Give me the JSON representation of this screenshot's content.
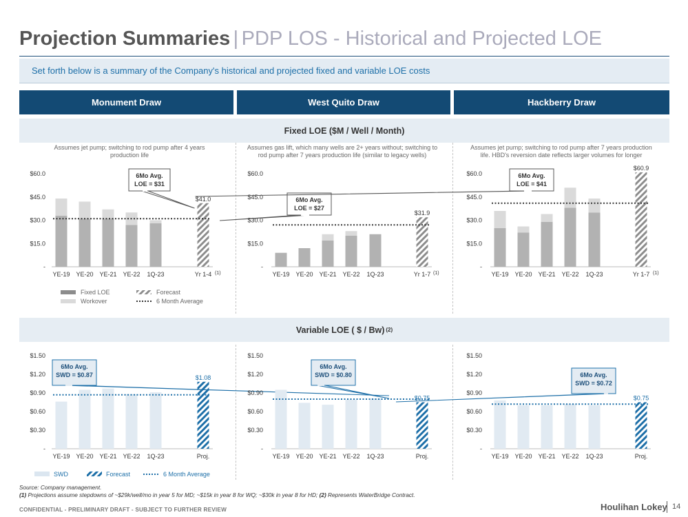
{
  "header": {
    "title_bold": "Projection Summaries",
    "title_sep": "|",
    "title_rest": "PDP LOS - Historical and Projected LOE",
    "subtitle": "Set forth below is a summary of the Company's historical and projected fixed and variable LOE costs"
  },
  "columns": [
    "Monument Draw",
    "West Quito Draw",
    "Hackberry Draw"
  ],
  "sections": {
    "fixed": {
      "label": "Fixed LOE ($M / Well / Month)"
    },
    "variable": {
      "label": "Variable LOE ( $ / Bw)",
      "sup": "(2)"
    }
  },
  "legends": {
    "fixed": {
      "fixed_loe": "Fixed LOE",
      "workover": "Workover",
      "forecast": "Forecast",
      "avg": "6 Month Average"
    },
    "variable": {
      "swd": "SWD",
      "forecast": "Forecast",
      "avg": "6 Month Average"
    }
  },
  "colors": {
    "navy": "#134a74",
    "fixed_gray": "#b2b2b2",
    "workover_gray": "#dadada",
    "swd_light": "#e1eaf2",
    "forecast_blue": "#1d6fa8",
    "text_gray": "#666666"
  },
  "chart_data": [
    {
      "type": "bar",
      "id": "fixed-monument",
      "note": "Assumes jet pump; switching to rod pump after 4 years production life",
      "categories": [
        "YE-19",
        "YE-20",
        "YE-21",
        "YE-22",
        "1Q-23",
        "Yr 1-4"
      ],
      "footnote_mark": "(1)",
      "series": [
        {
          "name": "Fixed LOE",
          "values": [
            33,
            31,
            31,
            27,
            28,
            null
          ]
        },
        {
          "name": "Workover",
          "values": [
            11,
            11,
            6,
            8,
            2,
            null
          ]
        },
        {
          "name": "Forecast",
          "values": [
            null,
            null,
            null,
            null,
            null,
            41.0
          ]
        }
      ],
      "forecast_label": "$41.0",
      "average": 31,
      "avg_label": [
        "6Mo Avg.",
        "LOE = $31"
      ],
      "yticks": [
        0,
        15,
        30,
        45,
        60
      ],
      "ytick_labels": [
        "-",
        "$15.0",
        "$30.0",
        "$45.0",
        "$60.0"
      ],
      "ylim": [
        0,
        60
      ]
    },
    {
      "type": "bar",
      "id": "fixed-westquito",
      "note": "Assumes gas lift, which many wells are 2+ years without; switching to rod pump after 7 years production life (similar to legacy wells)",
      "categories": [
        "YE-19",
        "YE-20",
        "YE-21",
        "YE-22",
        "1Q-23",
        "Yr 1-7"
      ],
      "footnote_mark": "(1)",
      "series": [
        {
          "name": "Fixed LOE",
          "values": [
            9,
            12,
            17,
            20,
            21,
            null
          ]
        },
        {
          "name": "Workover",
          "values": [
            0,
            0,
            4,
            3,
            0,
            null
          ]
        },
        {
          "name": "Forecast",
          "values": [
            null,
            null,
            null,
            null,
            null,
            31.9
          ]
        }
      ],
      "forecast_label": "$31.9",
      "average": 27,
      "avg_label": [
        "6Mo Avg.",
        "LOE = $27"
      ],
      "yticks": [
        0,
        15,
        30,
        45,
        60
      ],
      "ytick_labels": [
        "-",
        "$15.0",
        "$30.0",
        "$45.0",
        "$60.0"
      ],
      "ylim": [
        0,
        60
      ]
    },
    {
      "type": "bar",
      "id": "fixed-hackberry",
      "note": "Assumes jet pump; switching to rod pump after 7 years production life. HBD's reversion date reflects larger volumes for longer",
      "categories": [
        "YE-19",
        "YE-20",
        "YE-21",
        "YE-22",
        "1Q-23",
        "Yr 1-7"
      ],
      "footnote_mark": "(1)",
      "series": [
        {
          "name": "Fixed LOE",
          "values": [
            25,
            22,
            29,
            38,
            35,
            null
          ]
        },
        {
          "name": "Workover",
          "values": [
            11,
            4,
            5,
            13,
            9,
            null
          ]
        },
        {
          "name": "Forecast",
          "values": [
            null,
            null,
            null,
            null,
            null,
            60.9
          ]
        }
      ],
      "forecast_label": "$60.9",
      "average": 41,
      "avg_label": [
        "6Mo Avg.",
        "LOE = $41"
      ],
      "yticks": [
        0,
        15,
        30,
        45,
        60
      ],
      "ytick_labels": [
        "-",
        "$15.0",
        "$30.0",
        "$45.0",
        "$60.0"
      ],
      "ylim": [
        0,
        60
      ]
    },
    {
      "type": "bar",
      "id": "var-monument",
      "categories": [
        "YE-19",
        "YE-20",
        "YE-21",
        "YE-22",
        "1Q-23",
        "Proj."
      ],
      "series": [
        {
          "name": "SWD",
          "values": [
            0.76,
            0.95,
            0.97,
            0.88,
            0.91,
            null
          ]
        },
        {
          "name": "Forecast",
          "values": [
            null,
            null,
            null,
            null,
            null,
            1.08
          ]
        }
      ],
      "forecast_label": "$1.08",
      "average": 0.87,
      "avg_label": [
        "6Mo Avg.",
        "SWD = $0.87"
      ],
      "yticks": [
        0,
        0.3,
        0.6,
        0.9,
        1.2,
        1.5
      ],
      "ytick_labels": [
        "-",
        "$0.30",
        "$0.60",
        "$0.90",
        "$1.20",
        "$1.50"
      ],
      "ylim": [
        0,
        1.5
      ]
    },
    {
      "type": "bar",
      "id": "var-westquito",
      "categories": [
        "YE-19",
        "YE-20",
        "YE-21",
        "YE-22",
        "1Q-23",
        "Proj."
      ],
      "series": [
        {
          "name": "SWD",
          "values": [
            0.95,
            0.74,
            0.71,
            0.79,
            0.81,
            null
          ]
        },
        {
          "name": "Forecast",
          "values": [
            null,
            null,
            null,
            null,
            null,
            0.75
          ]
        }
      ],
      "forecast_label": "$0.75",
      "average": 0.8,
      "avg_label": [
        "6Mo Avg.",
        "SWD = $0.80"
      ],
      "yticks": [
        0,
        0.3,
        0.6,
        0.9,
        1.2,
        1.5
      ],
      "ytick_labels": [
        "-",
        "$0.30",
        "$0.60",
        "$0.90",
        "$1.20",
        "$1.50"
      ],
      "ylim": [
        0,
        1.5
      ]
    },
    {
      "type": "bar",
      "id": "var-hackberry",
      "categories": [
        "YE-19",
        "YE-20",
        "YE-21",
        "YE-22",
        "1Q-23",
        "Proj."
      ],
      "series": [
        {
          "name": "SWD",
          "values": [
            0.78,
            0.7,
            0.7,
            0.72,
            0.7,
            null
          ]
        },
        {
          "name": "Forecast",
          "values": [
            null,
            null,
            null,
            null,
            null,
            0.75
          ]
        }
      ],
      "forecast_label": "$0.75",
      "average": 0.72,
      "avg_label": [
        "6Mo Avg.",
        "SWD = $0.72"
      ],
      "yticks": [
        0,
        0.3,
        0.6,
        0.9,
        1.2,
        1.5
      ],
      "ytick_labels": [
        "-",
        "$0.30",
        "$0.60",
        "$0.90",
        "$1.20",
        "$1.50"
      ],
      "ylim": [
        0,
        1.5
      ]
    }
  ],
  "footer": {
    "source": "Source: Company management.",
    "note_1_mark": "(1)",
    "note_1": " Projections assume stepdowns of ~$29k/well/mo in year 5 for MD; ~$15k in year 8 for WQ; ~$30k in year 8 for HD;",
    "note_2_mark": "(2)",
    "note_2": " Represents WaterBridge Contract.",
    "confidential": "CONFIDENTIAL - PRELIMINARY DRAFT - SUBJECT TO FURTHER REVIEW",
    "brand": "Houlihan Lokey",
    "page": "14"
  }
}
